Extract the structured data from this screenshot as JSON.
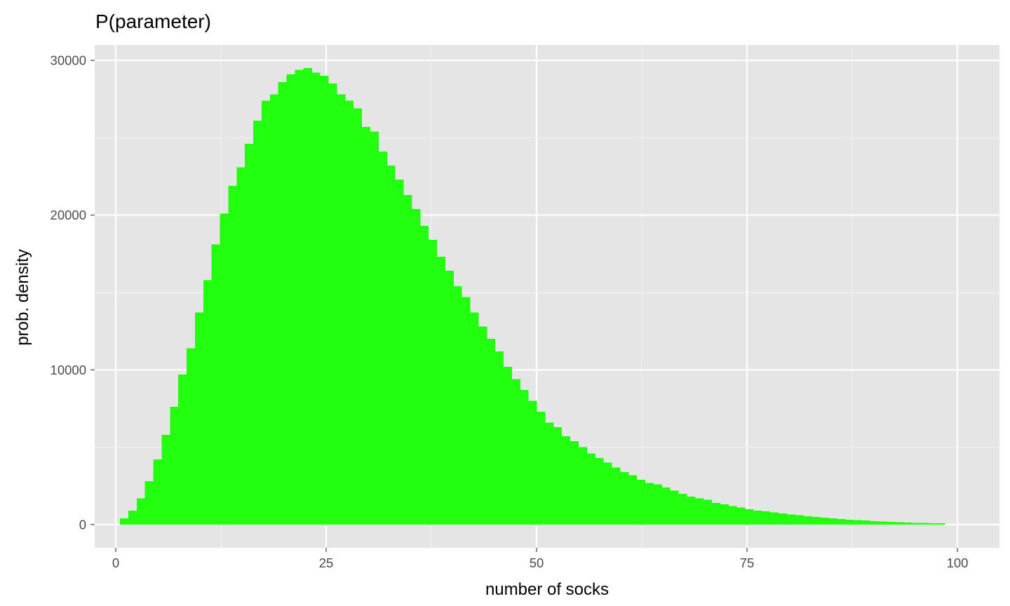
{
  "chart_data": {
    "type": "bar",
    "title": "P(parameter)",
    "xlabel": "number of socks",
    "ylabel": "prob. density",
    "xlim": [
      -2.5,
      105
    ],
    "ylim": [
      -1500,
      31000
    ],
    "x_ticks": [
      0,
      25,
      50,
      75,
      100
    ],
    "x_tick_labels": [
      "0",
      "25",
      "50",
      "75",
      "100"
    ],
    "y_ticks": [
      0,
      10000,
      20000,
      30000
    ],
    "y_tick_labels": [
      "0",
      "10000",
      "20000",
      "30000"
    ],
    "grid": true,
    "legend": "none",
    "bin_width": 0.99,
    "bin_start": 0.5,
    "categories": [
      1,
      2,
      3,
      4,
      5,
      6,
      7,
      8,
      9,
      10,
      11,
      12,
      13,
      14,
      15,
      16,
      17,
      18,
      19,
      20,
      21,
      22,
      23,
      24,
      25,
      26,
      27,
      28,
      29,
      30,
      31,
      32,
      33,
      34,
      35,
      36,
      37,
      38,
      39,
      40,
      41,
      42,
      43,
      44,
      45,
      46,
      47,
      48,
      49,
      50,
      51,
      52,
      53,
      54,
      55,
      56,
      57,
      58,
      59,
      60,
      61,
      62,
      63,
      64,
      65,
      66,
      67,
      68,
      69,
      70,
      71,
      72,
      73,
      74,
      75,
      76,
      77,
      78,
      79,
      80,
      81,
      82,
      83,
      84,
      85,
      86,
      87,
      88,
      89,
      90,
      91,
      92,
      93,
      94,
      95,
      96,
      97,
      98,
      99
    ],
    "values": [
      400,
      900,
      1700,
      2800,
      4200,
      5800,
      7600,
      9700,
      11400,
      13700,
      15800,
      18100,
      20100,
      21900,
      23100,
      24600,
      26100,
      27400,
      27800,
      28600,
      29100,
      29400,
      29500,
      29200,
      29000,
      28500,
      27800,
      27400,
      26900,
      25700,
      25400,
      24100,
      23200,
      22300,
      21300,
      20400,
      19300,
      18400,
      17300,
      16400,
      15400,
      14700,
      13700,
      12800,
      12000,
      11200,
      10200,
      9400,
      8700,
      8000,
      7300,
      6600,
      6300,
      5700,
      5400,
      5000,
      4600,
      4300,
      4000,
      3700,
      3400,
      3200,
      2900,
      2700,
      2600,
      2400,
      2200,
      2000,
      1800,
      1700,
      1600,
      1400,
      1300,
      1200,
      1100,
      1000,
      900,
      850,
      800,
      720,
      650,
      600,
      550,
      500,
      450,
      400,
      350,
      320,
      290,
      260,
      230,
      200,
      180,
      160,
      140,
      120,
      100,
      90,
      80
    ]
  },
  "colors": {
    "bar_fill": "#22ff0f",
    "panel_bg": "#e5e5e5",
    "grid_major": "#ffffff",
    "grid_minor": "#f2f2f2",
    "tick_mark": "#333333"
  }
}
